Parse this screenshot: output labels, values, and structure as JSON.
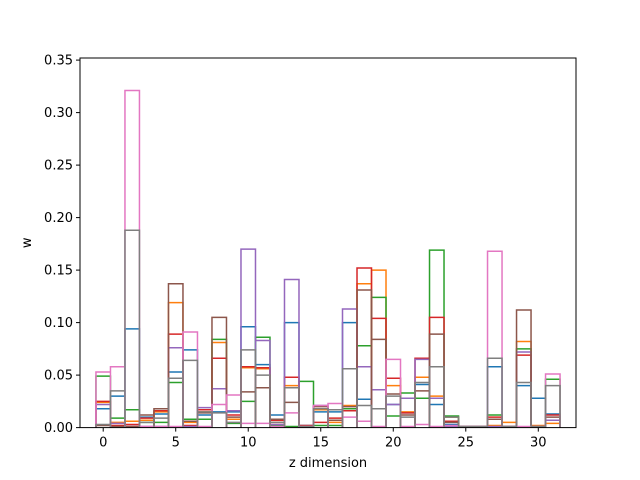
{
  "chart_data": {
    "type": "step-histogram",
    "title": "",
    "xlabel": "z dimension",
    "ylabel": "w",
    "xlim": [
      -1.6,
      32.6
    ],
    "ylim": [
      0,
      0.352
    ],
    "x_ticks": [
      0,
      5,
      10,
      15,
      20,
      25,
      30
    ],
    "x_tick_labels": [
      "0",
      "5",
      "10",
      "15",
      "20",
      "25",
      "30"
    ],
    "y_ticks": [
      0,
      0.05,
      0.1,
      0.15,
      0.2,
      0.25,
      0.3,
      0.35
    ],
    "y_tick_labels": [
      "0.00",
      "0.05",
      "0.10",
      "0.15",
      "0.20",
      "0.25",
      "0.30",
      "0.35"
    ],
    "bin_width": 1,
    "grid": false,
    "x": [
      0,
      1,
      2,
      3,
      4,
      5,
      6,
      7,
      8,
      9,
      10,
      11,
      12,
      13,
      14,
      15,
      16,
      17,
      18,
      19,
      20,
      21,
      22,
      23,
      24,
      25,
      26,
      27,
      28,
      29,
      30,
      31
    ],
    "series": [
      {
        "color": "#1f77b4",
        "values": [
          0.018,
          0.03,
          0.094,
          0.01,
          0.013,
          0.053,
          0.074,
          0.012,
          0.015,
          0.015,
          0.096,
          0.06,
          0.012,
          0.1,
          0.002,
          0.015,
          0.015,
          0.1,
          0.027,
          0.018,
          0.022,
          0.014,
          0.041,
          0.022,
          0.003,
          0.001,
          0.001,
          0.058,
          0.001,
          0.04,
          0.028,
          0.013
        ]
      },
      {
        "color": "#ff7f0e",
        "values": [
          0.024,
          0.005,
          0.006,
          0.007,
          0.015,
          0.119,
          0.005,
          0.015,
          0.081,
          0.008,
          0.057,
          0.056,
          0.005,
          0.04,
          0.001,
          0.017,
          0.005,
          0.021,
          0.137,
          0.15,
          0.04,
          0.015,
          0.048,
          0.03,
          0.01,
          0.001,
          0.001,
          0.002,
          0.005,
          0.082,
          0.002,
          0.004
        ]
      },
      {
        "color": "#2ca02c",
        "values": [
          0.049,
          0.009,
          0.017,
          0.005,
          0.005,
          0.043,
          0.008,
          0.008,
          0.084,
          0.004,
          0.025,
          0.086,
          0.002,
          0.001,
          0.044,
          0.002,
          0.002,
          0.018,
          0.078,
          0.124,
          0.011,
          0.033,
          0.028,
          0.169,
          0.011,
          0.001,
          0.001,
          0.012,
          0.001,
          0.075,
          0.001,
          0.046
        ]
      },
      {
        "color": "#d62728",
        "values": [
          0.025,
          0.002,
          0.003,
          0.009,
          0.016,
          0.089,
          0.002,
          0.017,
          0.066,
          0.012,
          0.058,
          0.057,
          0.007,
          0.048,
          0.002,
          0.005,
          0.009,
          0.016,
          0.152,
          0.104,
          0.047,
          0.014,
          0.066,
          0.105,
          0.006,
          0.001,
          0.001,
          0.01,
          0.001,
          0.069,
          0.001,
          0.012
        ]
      },
      {
        "color": "#9467bd",
        "values": [
          0.022,
          0.004,
          0.001,
          0.001,
          0.001,
          0.076,
          0.001,
          0.019,
          0.037,
          0.016,
          0.17,
          0.083,
          0.003,
          0.141,
          0.001,
          0.021,
          0.017,
          0.113,
          0.058,
          0.036,
          0.022,
          0.028,
          0.065,
          0.028,
          0.001,
          0.001,
          0.001,
          0.001,
          0.001,
          0.072,
          0.001,
          0.007
        ]
      },
      {
        "color": "#8c564b",
        "values": [
          0.002,
          0.001,
          0.001,
          0.012,
          0.018,
          0.137,
          0.006,
          0.014,
          0.105,
          0.01,
          0.034,
          0.038,
          0.008,
          0.024,
          0.001,
          0.02,
          0.007,
          0.02,
          0.131,
          0.084,
          0.032,
          0.012,
          0.035,
          0.089,
          0.005,
          0.001,
          0.001,
          0.008,
          0.001,
          0.112,
          0.001,
          0.01
        ]
      },
      {
        "color": "#e377c2",
        "values": [
          0.053,
          0.058,
          0.321,
          0.001,
          0.001,
          0.001,
          0.091,
          0.001,
          0.022,
          0.031,
          0.004,
          0.004,
          0.001,
          0.014,
          0.001,
          0.021,
          0.023,
          0.01,
          0.006,
          0.001,
          0.065,
          0.001,
          0.003,
          0.001,
          0.002,
          0.001,
          0.001,
          0.168,
          0.001,
          0.001,
          0.001,
          0.051
        ]
      },
      {
        "color": "#7f7f7f",
        "values": [
          0.003,
          0.035,
          0.188,
          0.005,
          0.009,
          0.047,
          0.064,
          0.015,
          0.014,
          0.005,
          0.074,
          0.05,
          0.005,
          0.038,
          0.001,
          0.018,
          0.017,
          0.056,
          0.021,
          0.018,
          0.03,
          0.01,
          0.043,
          0.058,
          0.01,
          0.001,
          0.001,
          0.066,
          0.001,
          0.043,
          0.001,
          0.04
        ]
      }
    ]
  }
}
